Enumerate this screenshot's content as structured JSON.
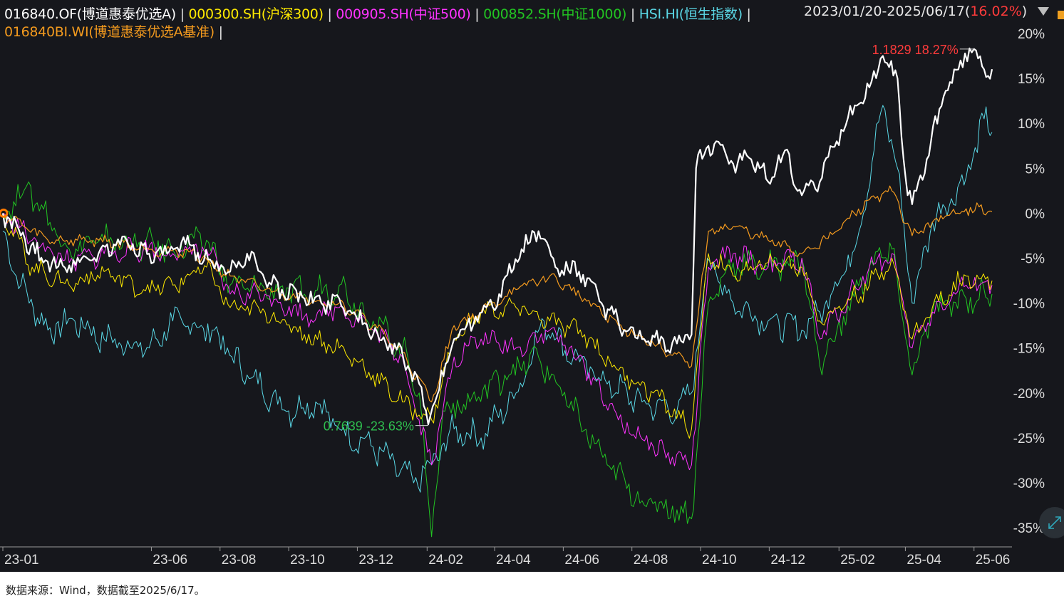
{
  "legend": {
    "row1": [
      {
        "text": "016840.OF(博道惠泰优选A)",
        "color": "#ffffff"
      },
      {
        "text": "000300.SH(沪深300)",
        "color": "#ffea00"
      },
      {
        "text": "000905.SH(中证500)",
        "color": "#ff33ff"
      },
      {
        "text": "000852.SH(中证1000)",
        "color": "#22c422"
      },
      {
        "text": "HSI.HI(恒生指数)",
        "color": "#5ad8e6"
      }
    ],
    "row2": [
      {
        "text": "016840BI.WI(博道惠泰优选A基准)",
        "color": "#f39a1e"
      }
    ],
    "separator": "|"
  },
  "period": {
    "range_text": "2023/01/20-2025/06/17",
    "open_paren": "(",
    "return_text": "16.02%",
    "close_paren": ")"
  },
  "footer": {
    "source_text": "数据来源：Wind，数据截至2025/6/17。"
  },
  "chart_data": {
    "type": "line",
    "ylabel_unit": "%",
    "ylim": [
      -37,
      22
    ],
    "y_ticks": [
      20,
      15,
      10,
      5,
      0,
      -5,
      -10,
      -15,
      -20,
      -25,
      -30,
      -35
    ],
    "y_tick_labels": [
      "20%",
      "15%",
      "10%",
      "5%",
      "0%",
      "-5%",
      "-10%",
      "-15%",
      "-20%",
      "-25%",
      "-30%",
      "-35%"
    ],
    "x_range": [
      "2023-01-20",
      "2025-06-17"
    ],
    "x_ticks": [
      "2023-01-20",
      "2023-06-01",
      "2023-08-01",
      "2023-10-01",
      "2023-12-01",
      "2024-02-01",
      "2024-04-01",
      "2024-06-01",
      "2024-08-01",
      "2024-10-01",
      "2024-12-01",
      "2025-02-01",
      "2025-04-01",
      "2025-06-01"
    ],
    "x_tick_labels": [
      "23-01",
      "23-06",
      "23-08",
      "23-10",
      "23-12",
      "24-02",
      "24-04",
      "24-06",
      "24-08",
      "24-10",
      "24-12",
      "25-02",
      "25-04",
      "25-06"
    ],
    "grid": false,
    "colors": {
      "fund": "#ffffff",
      "benchmark": "#f39a1e",
      "csi300": "#ffea00",
      "csi500": "#ff33ff",
      "csi1000": "#22c422",
      "hsi": "#5ad8e6",
      "min_annotation": "#2fbf4f",
      "max_annotation": "#ff3b3b"
    },
    "series": [
      {
        "key": "fund",
        "name": "016840.OF(博道惠泰优选A)",
        "width": 2.2,
        "x": [
          "2023-01-20",
          "2023-02-05",
          "2023-02-25",
          "2023-03-20",
          "2023-04-15",
          "2023-05-10",
          "2023-05-30",
          "2023-06-15",
          "2023-07-05",
          "2023-07-25",
          "2023-08-10",
          "2023-08-25",
          "2023-09-10",
          "2023-09-25",
          "2023-10-15",
          "2023-10-30",
          "2023-11-15",
          "2023-11-30",
          "2023-12-15",
          "2023-12-30",
          "2024-01-15",
          "2024-01-25",
          "2024-02-02",
          "2024-02-08",
          "2024-02-25",
          "2024-03-15",
          "2024-04-05",
          "2024-04-25",
          "2024-05-10",
          "2024-05-25",
          "2024-06-15",
          "2024-07-05",
          "2024-07-25",
          "2024-08-10",
          "2024-08-25",
          "2024-09-10",
          "2024-09-23",
          "2024-09-27",
          "2024-10-08",
          "2024-10-15",
          "2024-10-30",
          "2024-11-15",
          "2024-11-30",
          "2024-12-15",
          "2024-12-30",
          "2025-01-15",
          "2025-01-30",
          "2025-02-15",
          "2025-02-28",
          "2025-03-12",
          "2025-03-25",
          "2025-04-03",
          "2025-04-07",
          "2025-04-20",
          "2025-05-05",
          "2025-05-20",
          "2025-06-01",
          "2025-06-10",
          "2025-06-17"
        ],
        "y": [
          0,
          -2.5,
          -5.5,
          -5.8,
          -4.5,
          -3,
          -4.5,
          -4.5,
          -3.5,
          -5.5,
          -6.5,
          -4.5,
          -7.5,
          -8.5,
          -9.5,
          -10,
          -9.5,
          -11.5,
          -13.5,
          -14.5,
          -17,
          -19,
          -23.5,
          -21,
          -14,
          -11.5,
          -9,
          -4,
          -2,
          -6,
          -6.5,
          -10,
          -13,
          -14,
          -14.5,
          -14.5,
          -13.5,
          5,
          7.5,
          8,
          5.5,
          6,
          3.5,
          7,
          2,
          3.5,
          8,
          12,
          14,
          17.5,
          15,
          2,
          1,
          6,
          13,
          17,
          18.27,
          16,
          16.02
        ]
      },
      {
        "key": "benchmark",
        "name": "016840BI.WI(博道惠泰优选A基准)",
        "width": 1.2,
        "x": [
          "2023-01-20",
          "2023-03-01",
          "2023-04-15",
          "2023-06-01",
          "2023-07-10",
          "2023-08-10",
          "2023-09-10",
          "2023-10-15",
          "2023-11-15",
          "2023-12-15",
          "2024-01-10",
          "2024-02-05",
          "2024-02-25",
          "2024-03-20",
          "2024-04-20",
          "2024-05-20",
          "2024-06-20",
          "2024-07-20",
          "2024-08-20",
          "2024-09-23",
          "2024-10-08",
          "2024-10-30",
          "2024-11-30",
          "2024-12-30",
          "2025-01-30",
          "2025-02-28",
          "2025-03-20",
          "2025-04-07",
          "2025-04-25",
          "2025-05-25",
          "2025-06-17"
        ],
        "y": [
          0,
          -3,
          -3,
          -4,
          -4.5,
          -7,
          -8.5,
          -9.5,
          -10,
          -12.5,
          -15.5,
          -21,
          -12.5,
          -11,
          -8.5,
          -7,
          -9.5,
          -12.5,
          -14.5,
          -17,
          -2,
          -1.5,
          -3,
          -4.5,
          -2,
          1.5,
          2.5,
          -2.5,
          -1,
          0.5,
          0.2
        ]
      },
      {
        "key": "csi300",
        "name": "000300.SH(沪深300)",
        "width": 1.0,
        "x": [
          "2023-01-20",
          "2023-02-15",
          "2023-03-20",
          "2023-04-20",
          "2023-05-25",
          "2023-06-20",
          "2023-07-20",
          "2023-08-10",
          "2023-09-10",
          "2023-10-15",
          "2023-11-15",
          "2023-12-15",
          "2024-01-10",
          "2024-02-05",
          "2024-02-25",
          "2024-03-20",
          "2024-04-20",
          "2024-05-20",
          "2024-06-20",
          "2024-07-20",
          "2024-08-20",
          "2024-09-23",
          "2024-10-08",
          "2024-10-30",
          "2024-11-30",
          "2024-12-30",
          "2025-01-15",
          "2025-02-28",
          "2025-03-20",
          "2025-04-07",
          "2025-04-25",
          "2025-05-25",
          "2025-06-17"
        ],
        "y": [
          0,
          -6,
          -8,
          -6.5,
          -8.5,
          -8,
          -6,
          -10.5,
          -11,
          -13.5,
          -15,
          -18,
          -21,
          -23,
          -14,
          -11,
          -10.5,
          -12,
          -13.5,
          -17.5,
          -20,
          -24,
          -4.5,
          -7,
          -5.5,
          -6,
          -12,
          -8,
          -5,
          -14,
          -10.5,
          -7,
          -7.5
        ]
      },
      {
        "key": "csi500",
        "name": "000905.SH(中证500)",
        "width": 1.0,
        "x": [
          "2023-01-20",
          "2023-02-15",
          "2023-03-20",
          "2023-04-20",
          "2023-05-25",
          "2023-06-20",
          "2023-07-20",
          "2023-08-10",
          "2023-09-10",
          "2023-10-15",
          "2023-11-15",
          "2023-12-15",
          "2024-01-10",
          "2024-02-05",
          "2024-02-25",
          "2024-03-20",
          "2024-04-20",
          "2024-05-20",
          "2024-06-20",
          "2024-07-20",
          "2024-08-20",
          "2024-09-23",
          "2024-10-08",
          "2024-10-30",
          "2024-11-30",
          "2024-12-30",
          "2025-01-15",
          "2025-02-28",
          "2025-03-20",
          "2025-04-07",
          "2025-04-25",
          "2025-05-25",
          "2025-06-17"
        ],
        "y": [
          0,
          -3,
          -5.5,
          -4.5,
          -4,
          -4.5,
          -4,
          -9,
          -9,
          -11.5,
          -10.5,
          -13,
          -16,
          -28,
          -16,
          -14,
          -15,
          -13,
          -17,
          -23,
          -26,
          -28,
          -6,
          -4.5,
          -6,
          -5,
          -14,
          -6,
          -4.5,
          -15,
          -11,
          -8,
          -8
        ]
      },
      {
        "key": "csi1000",
        "name": "000852.SH(中证1000)",
        "width": 1.0,
        "x": [
          "2023-01-20",
          "2023-02-10",
          "2023-03-20",
          "2023-04-20",
          "2023-05-25",
          "2023-06-20",
          "2023-07-20",
          "2023-08-10",
          "2023-09-10",
          "2023-10-15",
          "2023-11-15",
          "2023-12-15",
          "2024-01-10",
          "2024-01-25",
          "2024-02-05",
          "2024-02-15",
          "2024-03-10",
          "2024-04-10",
          "2024-05-10",
          "2024-06-10",
          "2024-07-10",
          "2024-08-10",
          "2024-09-10",
          "2024-09-23",
          "2024-10-08",
          "2024-10-30",
          "2024-11-30",
          "2024-12-30",
          "2025-01-15",
          "2025-02-28",
          "2025-03-20",
          "2025-04-07",
          "2025-04-25",
          "2025-05-25",
          "2025-06-17"
        ],
        "y": [
          0,
          3,
          -4,
          -3,
          -3.5,
          -4,
          -3,
          -8,
          -8.5,
          -9,
          -8,
          -12,
          -15,
          -20,
          -36,
          -22,
          -21,
          -18,
          -16,
          -22,
          -28,
          -32,
          -33,
          -34,
          -10,
          -5.5,
          -6,
          -5,
          -17,
          -6,
          -4,
          -18,
          -11,
          -9.5,
          -9
        ]
      },
      {
        "key": "hsi",
        "name": "HSI.HI(恒生指数)",
        "width": 1.0,
        "x": [
          "2023-01-20",
          "2023-02-05",
          "2023-03-01",
          "2023-03-25",
          "2023-04-20",
          "2023-05-30",
          "2023-06-20",
          "2023-07-25",
          "2023-08-25",
          "2023-10-01",
          "2023-10-25",
          "2023-11-15",
          "2023-12-15",
          "2024-01-20",
          "2024-02-05",
          "2024-02-25",
          "2024-03-20",
          "2024-04-20",
          "2024-05-15",
          "2024-06-10",
          "2024-07-10",
          "2024-08-10",
          "2024-09-10",
          "2024-09-23",
          "2024-10-07",
          "2024-10-30",
          "2024-11-30",
          "2024-12-30",
          "2025-01-15",
          "2025-02-15",
          "2025-03-12",
          "2025-03-25",
          "2025-04-07",
          "2025-04-25",
          "2025-05-25",
          "2025-06-10",
          "2025-06-17"
        ],
        "y": [
          -2,
          -8,
          -13,
          -12,
          -14,
          -15,
          -12,
          -13,
          -18,
          -22,
          -21,
          -24,
          -26,
          -30,
          -28,
          -24,
          -25,
          -20,
          -12,
          -16,
          -19,
          -21,
          -22,
          -20,
          -5,
          -10,
          -12,
          -13,
          -11,
          -4,
          12,
          5,
          -10,
          -1,
          4,
          10.5,
          9
        ]
      }
    ],
    "annotations": [
      {
        "kind": "min",
        "series": "fund",
        "x": "2024-02-02",
        "y": -23.63,
        "label": "0.7639 -23.63%"
      },
      {
        "kind": "max",
        "series": "fund",
        "x": "2025-06-01",
        "y": 18.27,
        "label": "1.1829 18.27%"
      }
    ]
  }
}
